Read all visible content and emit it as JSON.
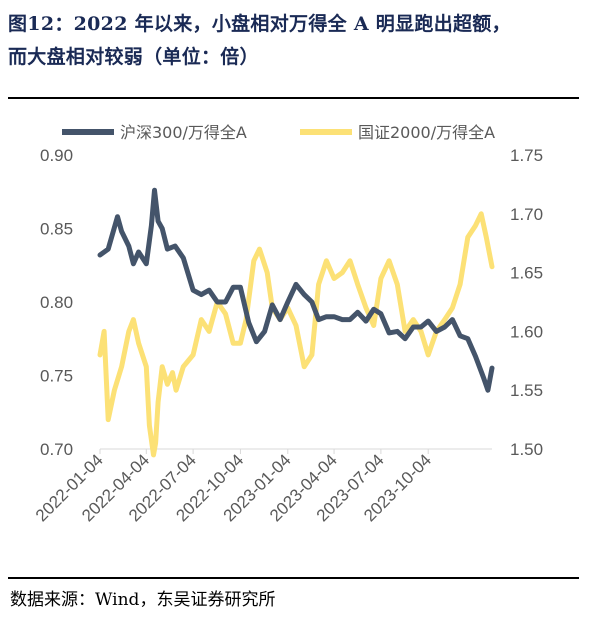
{
  "figure": {
    "title_line1": "图12：2022 年以来，小盘相对万得全 A 明显跑出超额，",
    "title_line2": "而大盘相对较弱（单位：倍）",
    "source": "数据来源：Wind，东吴证券研究所"
  },
  "chart_data": {
    "type": "line",
    "title": "图12：2022 年以来，小盘相对万得全 A 明显跑出超额，而大盘相对较弱（单位：倍）",
    "x_tick_labels": [
      "2022-01-04",
      "2022-04-04",
      "2022-07-04",
      "2022-10-04",
      "2023-01-04",
      "2023-04-04",
      "2023-07-04",
      "2023-10-04"
    ],
    "x_range": [
      "2022-01-04",
      "2024-02-05"
    ],
    "y_left": {
      "ticks": [
        "0.90",
        "0.85",
        "0.80",
        "0.75",
        "0.70"
      ],
      "min": 0.7,
      "max": 0.9
    },
    "y_right": {
      "ticks": [
        "1.75",
        "1.70",
        "1.65",
        "1.60",
        "1.55",
        "1.50"
      ],
      "min": 1.5,
      "max": 1.75
    },
    "legend_position": "top",
    "grid": false,
    "series": [
      {
        "name": "沪深300/万得全A",
        "axis": "left",
        "color": "#44546a",
        "x": [
          "2022-01-04",
          "2022-01-20",
          "2022-02-07",
          "2022-02-15",
          "2022-03-01",
          "2022-03-10",
          "2022-03-20",
          "2022-04-04",
          "2022-04-14",
          "2022-04-20",
          "2022-04-27",
          "2022-05-05",
          "2022-05-15",
          "2022-05-30",
          "2022-06-15",
          "2022-07-04",
          "2022-07-20",
          "2022-08-04",
          "2022-08-20",
          "2022-09-05",
          "2022-09-20",
          "2022-10-04",
          "2022-10-20",
          "2022-11-04",
          "2022-11-20",
          "2022-12-05",
          "2022-12-20",
          "2023-01-04",
          "2023-01-20",
          "2023-02-05",
          "2023-02-20",
          "2023-03-05",
          "2023-03-20",
          "2023-04-04",
          "2023-04-20",
          "2023-05-05",
          "2023-05-20",
          "2023-06-05",
          "2023-06-20",
          "2023-07-04",
          "2023-07-20",
          "2023-08-05",
          "2023-08-20",
          "2023-09-05",
          "2023-09-20",
          "2023-10-04",
          "2023-10-20",
          "2023-11-05",
          "2023-11-20",
          "2023-12-05",
          "2023-12-20",
          "2024-01-04",
          "2024-01-20",
          "2024-01-28",
          "2024-02-05"
        ],
        "y": [
          0.832,
          0.836,
          0.858,
          0.848,
          0.838,
          0.826,
          0.834,
          0.826,
          0.852,
          0.876,
          0.855,
          0.85,
          0.836,
          0.838,
          0.83,
          0.808,
          0.805,
          0.808,
          0.8,
          0.8,
          0.81,
          0.81,
          0.786,
          0.773,
          0.78,
          0.798,
          0.788,
          0.8,
          0.812,
          0.805,
          0.8,
          0.788,
          0.79,
          0.79,
          0.788,
          0.788,
          0.793,
          0.787,
          0.795,
          0.792,
          0.779,
          0.78,
          0.775,
          0.783,
          0.783,
          0.787,
          0.78,
          0.783,
          0.788,
          0.777,
          0.775,
          0.763,
          0.748,
          0.74,
          0.755
        ]
      },
      {
        "name": "国证2000/万得全A",
        "axis": "right",
        "color": "#fce176",
        "x": [
          "2022-01-04",
          "2022-01-12",
          "2022-01-20",
          "2022-02-01",
          "2022-02-15",
          "2022-03-01",
          "2022-03-10",
          "2022-03-20",
          "2022-04-04",
          "2022-04-10",
          "2022-04-18",
          "2022-04-22",
          "2022-04-27",
          "2022-05-05",
          "2022-05-15",
          "2022-05-25",
          "2022-06-01",
          "2022-06-15",
          "2022-07-04",
          "2022-07-20",
          "2022-08-04",
          "2022-08-20",
          "2022-09-05",
          "2022-09-20",
          "2022-10-04",
          "2022-10-15",
          "2022-10-30",
          "2022-11-10",
          "2022-11-25",
          "2022-12-05",
          "2022-12-20",
          "2023-01-04",
          "2023-01-20",
          "2023-02-05",
          "2023-02-20",
          "2023-03-05",
          "2023-03-20",
          "2023-04-04",
          "2023-04-20",
          "2023-05-05",
          "2023-05-20",
          "2023-06-05",
          "2023-06-20",
          "2023-07-04",
          "2023-07-20",
          "2023-08-05",
          "2023-08-20",
          "2023-09-05",
          "2023-09-20",
          "2023-10-04",
          "2023-10-20",
          "2023-11-05",
          "2023-11-20",
          "2023-12-05",
          "2023-12-20",
          "2024-01-04",
          "2024-01-15",
          "2024-01-25",
          "2024-02-05"
        ],
        "y": [
          1.58,
          1.6,
          1.525,
          1.55,
          1.57,
          1.6,
          1.61,
          1.59,
          1.57,
          1.52,
          1.495,
          1.505,
          1.54,
          1.57,
          1.555,
          1.565,
          1.55,
          1.57,
          1.58,
          1.61,
          1.6,
          1.625,
          1.615,
          1.59,
          1.59,
          1.61,
          1.66,
          1.67,
          1.65,
          1.62,
          1.61,
          1.62,
          1.605,
          1.57,
          1.58,
          1.64,
          1.66,
          1.645,
          1.65,
          1.66,
          1.64,
          1.62,
          1.605,
          1.645,
          1.66,
          1.64,
          1.6,
          1.61,
          1.6,
          1.58,
          1.6,
          1.61,
          1.62,
          1.64,
          1.68,
          1.69,
          1.7,
          1.68,
          1.655
        ]
      }
    ]
  }
}
